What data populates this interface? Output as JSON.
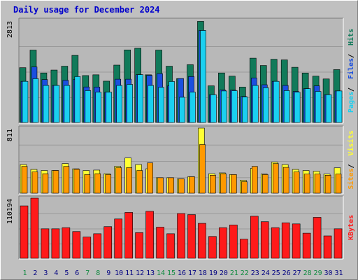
{
  "title": "Daily usage for December 2024",
  "colors": {
    "background": "#c0c0c0",
    "plot_bg": "#b8b8b8",
    "grid": "#9a9a9a",
    "hits": "#117a5a",
    "files": "#1a4fe0",
    "pages": "#1ad0f0",
    "visits": "#ffff33",
    "sites": "#ff9900",
    "kbytes": "#ff1a1a",
    "title": "#0000cc",
    "weekday_label": "#000080",
    "weekend_label": "#108a40"
  },
  "chart_data": [
    {
      "type": "bar",
      "panel": "hits-files-pages",
      "ylim": [
        0,
        2813
      ],
      "y_max_label": "2813",
      "legend": [
        "Pages",
        "Files",
        "Hits"
      ],
      "categories": [
        "1",
        "2",
        "3",
        "4",
        "5",
        "6",
        "7",
        "8",
        "9",
        "10",
        "11",
        "12",
        "13",
        "14",
        "15",
        "16",
        "17",
        "18",
        "19",
        "20",
        "21",
        "22",
        "23",
        "24",
        "25",
        "26",
        "27",
        "28",
        "29",
        "30",
        "31"
      ],
      "series": [
        {
          "name": "Hits",
          "values": [
            1509,
            1994,
            1364,
            1444,
            1550,
            1848,
            1292,
            1313,
            1138,
            1580,
            1998,
            2043,
            1313,
            1994,
            1550,
            1207,
            1591,
            2785,
            1009,
            1364,
            1275,
            975,
            1771,
            1569,
            1741,
            1724,
            1520,
            1363,
            1275,
            1199,
            1456
          ]
        },
        {
          "name": "Files",
          "values": [
            1133,
            1529,
            1182,
            1020,
            1162,
            1182,
            978,
            975,
            835,
            1192,
            1192,
            1317,
            1297,
            1345,
            1009,
            1211,
            1266,
            2535,
            764,
            895,
            891,
            717,
            1226,
            1039,
            1133,
            1020,
            856,
            931,
            1009,
            766,
            869
          ]
        },
        {
          "name": "Pages",
          "values": [
            1133,
            1207,
            1020,
            1020,
            1020,
            1264,
            878,
            835,
            835,
            1020,
            1049,
            1317,
            1020,
            969,
            1129,
            695,
            835,
            2534,
            764,
            869,
            876,
            703,
            1020,
            956,
            1133,
            878,
            835,
            931,
            856,
            764,
            869
          ]
        }
      ]
    },
    {
      "type": "bar",
      "panel": "visits-sites",
      "ylim": [
        0,
        811
      ],
      "y_max_label": "811",
      "legend": [
        "Sites",
        "Visits"
      ],
      "categories": [
        "1",
        "2",
        "3",
        "4",
        "5",
        "6",
        "7",
        "8",
        "9",
        "10",
        "11",
        "12",
        "13",
        "14",
        "15",
        "16",
        "17",
        "18",
        "19",
        "20",
        "21",
        "22",
        "23",
        "24",
        "25",
        "26",
        "27",
        "28",
        "29",
        "30",
        "31"
      ],
      "series": [
        {
          "name": "Visits",
          "values": [
            356,
            296,
            283,
            283,
            369,
            304,
            283,
            288,
            243,
            334,
            439,
            356,
            305,
            193,
            193,
            179,
            205,
            811,
            243,
            253,
            232,
            161,
            309,
            238,
            386,
            356,
            296,
            283,
            273,
            238,
            316
          ]
        },
        {
          "name": "Sites",
          "values": [
            334,
            265,
            243,
            283,
            334,
            298,
            232,
            243,
            232,
            318,
            318,
            283,
            378,
            193,
            193,
            179,
            205,
            606,
            224,
            243,
            232,
            144,
            334,
            232,
            369,
            322,
            265,
            238,
            238,
            224,
            238
          ]
        }
      ]
    },
    {
      "type": "bar",
      "panel": "kbytes",
      "ylim": [
        0,
        110194
      ],
      "y_max_label": "110194",
      "legend": [
        "KBytes"
      ],
      "categories": [
        "1",
        "2",
        "3",
        "4",
        "5",
        "6",
        "7",
        "8",
        "9",
        "10",
        "11",
        "12",
        "13",
        "14",
        "15",
        "16",
        "17",
        "18",
        "19",
        "20",
        "21",
        "22",
        "23",
        "24",
        "25",
        "26",
        "27",
        "28",
        "29",
        "30",
        "31"
      ],
      "series": [
        {
          "name": "KBytes",
          "values": [
            96000,
            110194,
            54000,
            54000,
            56000,
            49000,
            39000,
            45000,
            58000,
            72000,
            84000,
            47000,
            86000,
            57000,
            45000,
            82000,
            80000,
            64000,
            40000,
            56000,
            61000,
            35000,
            77000,
            67000,
            56000,
            65000,
            63000,
            46000,
            75000,
            41000,
            54000
          ]
        }
      ]
    }
  ],
  "x_labels": [
    {
      "label": "1",
      "weekend": true
    },
    {
      "label": "2",
      "weekend": false
    },
    {
      "label": "3",
      "weekend": false
    },
    {
      "label": "4",
      "weekend": false
    },
    {
      "label": "5",
      "weekend": false
    },
    {
      "label": "6",
      "weekend": false
    },
    {
      "label": "7",
      "weekend": true
    },
    {
      "label": "8",
      "weekend": true
    },
    {
      "label": "9",
      "weekend": false
    },
    {
      "label": "10",
      "weekend": false
    },
    {
      "label": "11",
      "weekend": false
    },
    {
      "label": "12",
      "weekend": false
    },
    {
      "label": "13",
      "weekend": false
    },
    {
      "label": "14",
      "weekend": true
    },
    {
      "label": "15",
      "weekend": true
    },
    {
      "label": "16",
      "weekend": false
    },
    {
      "label": "17",
      "weekend": false
    },
    {
      "label": "18",
      "weekend": false
    },
    {
      "label": "19",
      "weekend": false
    },
    {
      "label": "20",
      "weekend": false
    },
    {
      "label": "21",
      "weekend": true
    },
    {
      "label": "22",
      "weekend": true
    },
    {
      "label": "23",
      "weekend": false
    },
    {
      "label": "24",
      "weekend": false
    },
    {
      "label": "25",
      "weekend": false
    },
    {
      "label": "26",
      "weekend": false
    },
    {
      "label": "27",
      "weekend": false
    },
    {
      "label": "28",
      "weekend": true
    },
    {
      "label": "29",
      "weekend": true
    },
    {
      "label": "30",
      "weekend": false
    },
    {
      "label": "31",
      "weekend": false
    }
  ]
}
